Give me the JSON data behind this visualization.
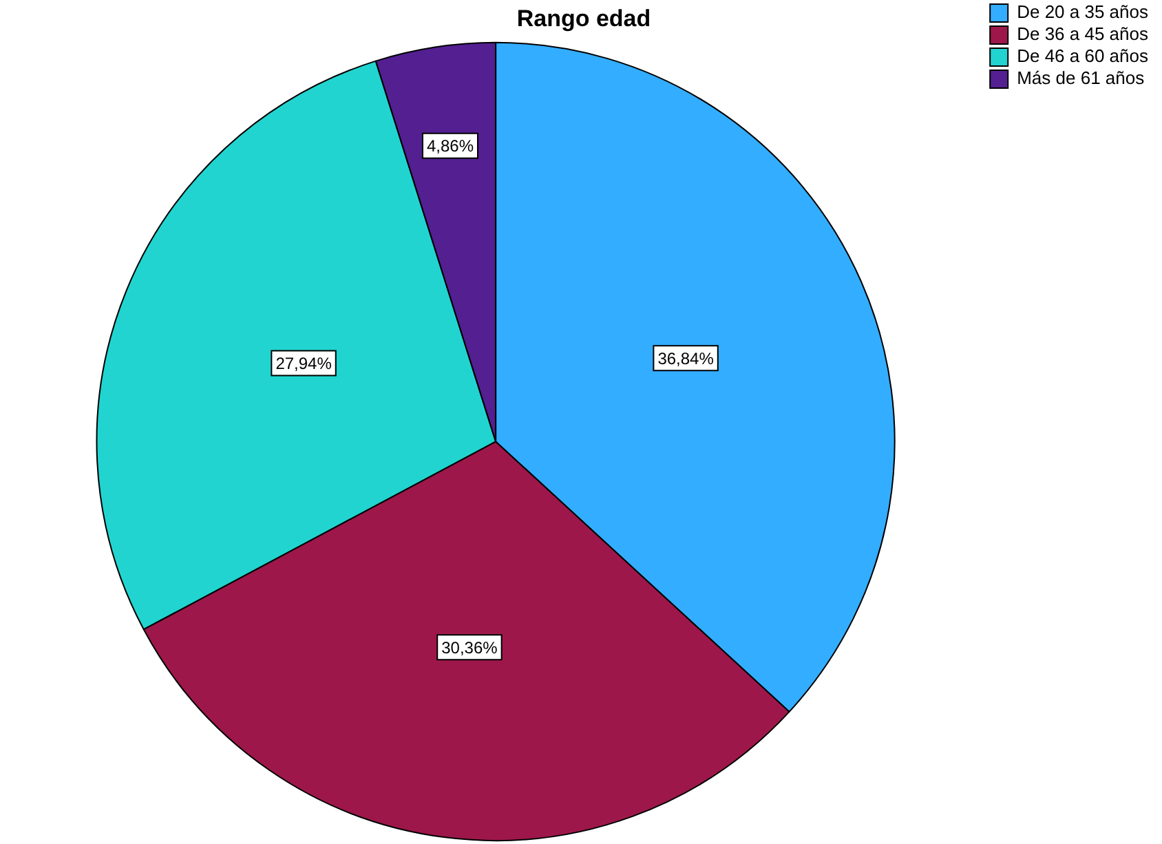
{
  "chart_data": {
    "type": "pie",
    "title": "Rango edad",
    "categories": [
      "De 20 a 35 años",
      "De 36 a 45 años",
      "De 46 a 60 años",
      "Más de 61 años"
    ],
    "values": [
      36.84,
      30.36,
      27.94,
      4.86
    ],
    "colors": [
      "#33adff",
      "#9e174b",
      "#21d4d0",
      "#531f91"
    ],
    "value_labels": [
      "36,84%",
      "30,36%",
      "27,94%",
      "4,86%"
    ],
    "legend": "top right"
  }
}
